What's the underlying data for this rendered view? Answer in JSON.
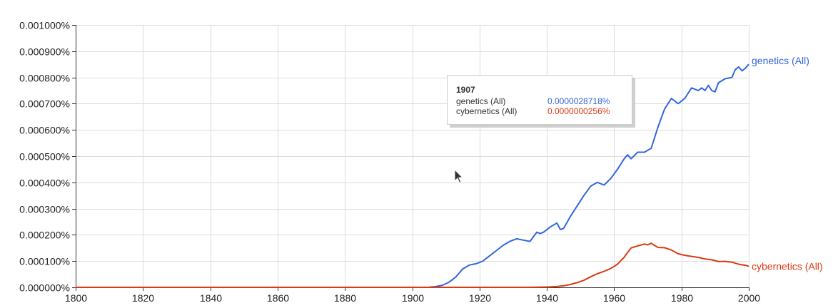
{
  "chart_data": {
    "type": "line",
    "title": "",
    "xlabel": "",
    "ylabel": "",
    "xlim": [
      1800,
      2000
    ],
    "ylim": [
      0,
      0.001
    ],
    "x_ticks": [
      1800,
      1820,
      1840,
      1860,
      1880,
      1900,
      1920,
      1940,
      1960,
      1980,
      2000
    ],
    "x_tick_labels": [
      "1800",
      "1820",
      "1840",
      "1860",
      "1880",
      "1900",
      "1920",
      "1940",
      "1960",
      "1980",
      "2000"
    ],
    "y_ticks": [
      0,
      0.0001,
      0.0002,
      0.0003,
      0.0004,
      0.0005,
      0.0006,
      0.0007,
      0.0008,
      0.0009,
      0.001
    ],
    "y_tick_labels": [
      "0.000000%",
      "0.000100%",
      "0.000200%",
      "0.000300%",
      "0.000400%",
      "0.000500%",
      "0.000600%",
      "0.000700%",
      "0.000800%",
      "0.000900%",
      "0.001000%"
    ],
    "grid": true,
    "series": [
      {
        "name": "genetics (All)",
        "color": "#3366dd",
        "x": [
          1800,
          1900,
          1905,
          1907,
          1909,
          1911,
          1913,
          1915,
          1917,
          1919,
          1921,
          1923,
          1925,
          1927,
          1929,
          1931,
          1933,
          1935,
          1937,
          1938,
          1939,
          1941,
          1943,
          1944,
          1945,
          1947,
          1949,
          1951,
          1953,
          1955,
          1957,
          1959,
          1961,
          1963,
          1964,
          1965,
          1967,
          1969,
          1971,
          1973,
          1975,
          1977,
          1979,
          1980,
          1981,
          1983,
          1985,
          1986,
          1987,
          1988,
          1989,
          1990,
          1991,
          1993,
          1995,
          1996,
          1997,
          1998,
          1999,
          2000
        ],
        "values": [
          0,
          0,
          3e-07,
          2.8718e-06,
          8e-06,
          2e-05,
          4e-05,
          7e-05,
          8.5e-05,
          9e-05,
          0.0001,
          0.00012,
          0.00014,
          0.00016,
          0.000175,
          0.000185,
          0.00018,
          0.000175,
          0.00021,
          0.000205,
          0.00021,
          0.00023,
          0.000245,
          0.00022,
          0.000225,
          0.00027,
          0.00031,
          0.00035,
          0.000385,
          0.0004,
          0.00039,
          0.000415,
          0.00045,
          0.00049,
          0.000505,
          0.00049,
          0.000515,
          0.000515,
          0.00053,
          0.00061,
          0.00068,
          0.00072,
          0.0007,
          0.00071,
          0.00072,
          0.00076,
          0.00075,
          0.00076,
          0.00075,
          0.00077,
          0.00075,
          0.000745,
          0.00078,
          0.000795,
          0.0008,
          0.00083,
          0.00084,
          0.000825,
          0.000835,
          0.00085
        ]
      },
      {
        "name": "cybernetics (All)",
        "color": "#dc3912",
        "x": [
          1800,
          1935,
          1940,
          1943,
          1945,
          1947,
          1949,
          1951,
          1953,
          1955,
          1957,
          1959,
          1961,
          1963,
          1965,
          1967,
          1969,
          1970,
          1971,
          1973,
          1975,
          1977,
          1979,
          1981,
          1983,
          1985,
          1987,
          1989,
          1991,
          1993,
          1995,
          1997,
          1999,
          2000
        ],
        "values": [
          0,
          0,
          1e-06,
          3e-06,
          6e-06,
          1.1e-05,
          1.8e-05,
          2.7e-05,
          4e-05,
          5.2e-05,
          6.1e-05,
          7.2e-05,
          8.8e-05,
          0.000115,
          0.00015,
          0.000158,
          0.000165,
          0.000162,
          0.000168,
          0.000152,
          0.000151,
          0.000142,
          0.000128,
          0.000122,
          0.000118,
          0.000114,
          0.000108,
          0.000105,
          9.8e-05,
          9.9e-05,
          9.6e-05,
          8.8e-05,
          8.4e-05,
          8e-05
        ]
      }
    ],
    "tooltip": {
      "year": "1907",
      "rows": [
        {
          "name": "genetics (All)",
          "value": "0.0000028718%"
        },
        {
          "name": "cybernetics (All)",
          "value": "0.0000000256%"
        }
      ]
    }
  }
}
